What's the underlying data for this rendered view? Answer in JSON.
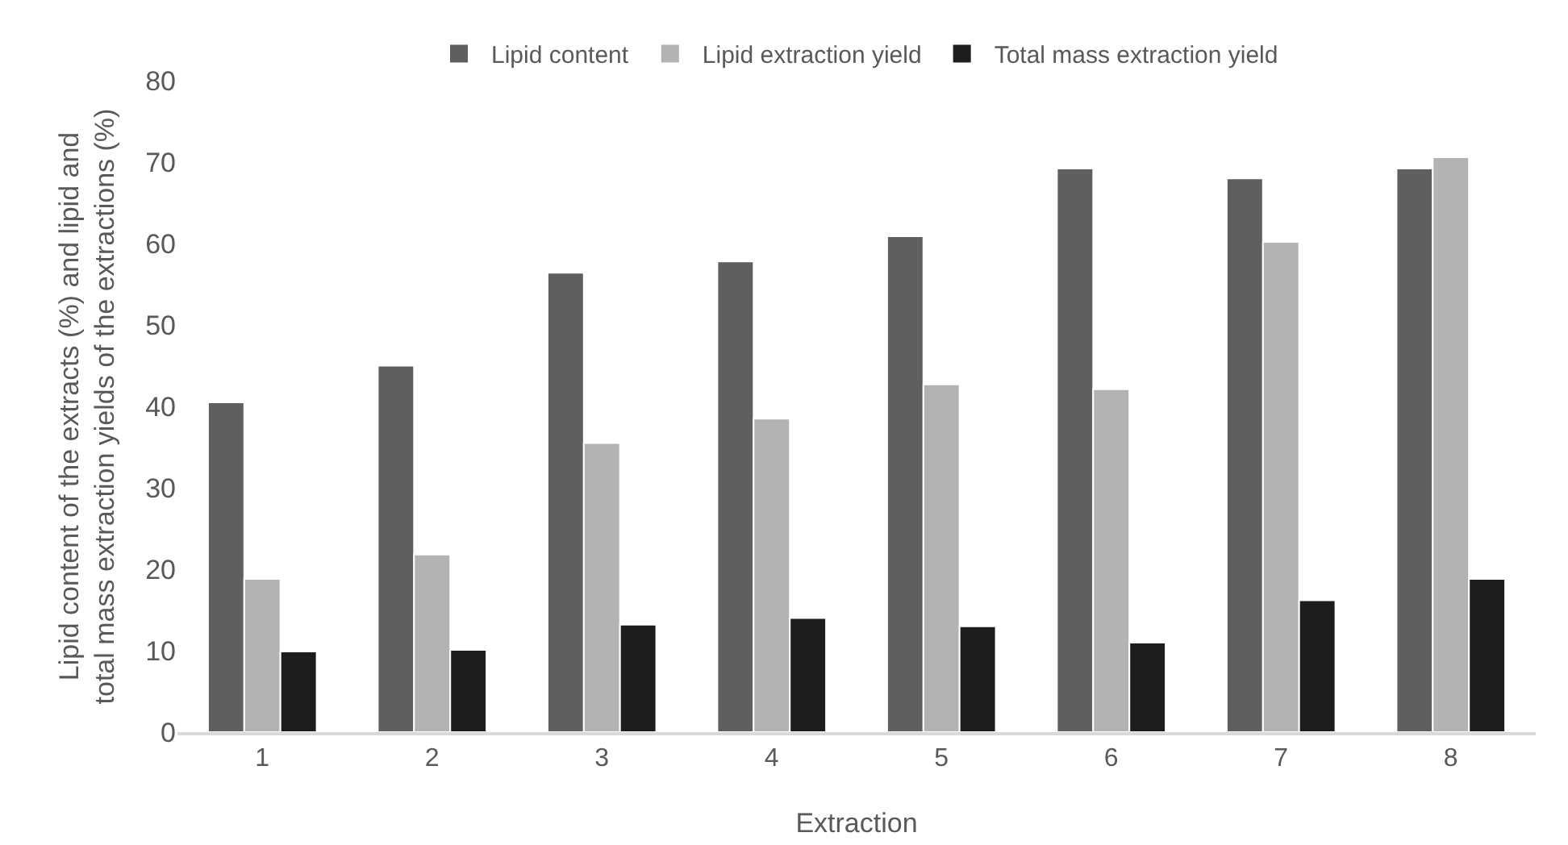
{
  "chart_data": {
    "type": "bar",
    "xlabel": "Extraction",
    "ylabel": "Lipid content of the extracts (%) and lipid and total mass extraction yields of the extractions (%)",
    "categories": [
      "1",
      "2",
      "3",
      "4",
      "5",
      "6",
      "7",
      "8"
    ],
    "series": [
      {
        "name": "Lipid content",
        "color": "#5f5f5f",
        "values": [
          40.5,
          45.0,
          56.4,
          57.8,
          60.9,
          69.2,
          68.0,
          69.2
        ]
      },
      {
        "name": "Lipid extraction yield",
        "color": "#b3b3b3",
        "values": [
          18.8,
          21.8,
          35.5,
          38.5,
          42.7,
          42.1,
          60.2,
          70.6
        ]
      },
      {
        "name": "Total mass extraction yield",
        "color": "#1d1d1d",
        "values": [
          9.9,
          10.1,
          13.2,
          14.0,
          13.0,
          11.0,
          16.2,
          18.8
        ]
      }
    ],
    "ylim": [
      0,
      80
    ],
    "yticks": [
      0,
      10,
      20,
      30,
      40,
      50,
      60,
      70,
      80
    ],
    "grid": false,
    "legend": "top"
  }
}
